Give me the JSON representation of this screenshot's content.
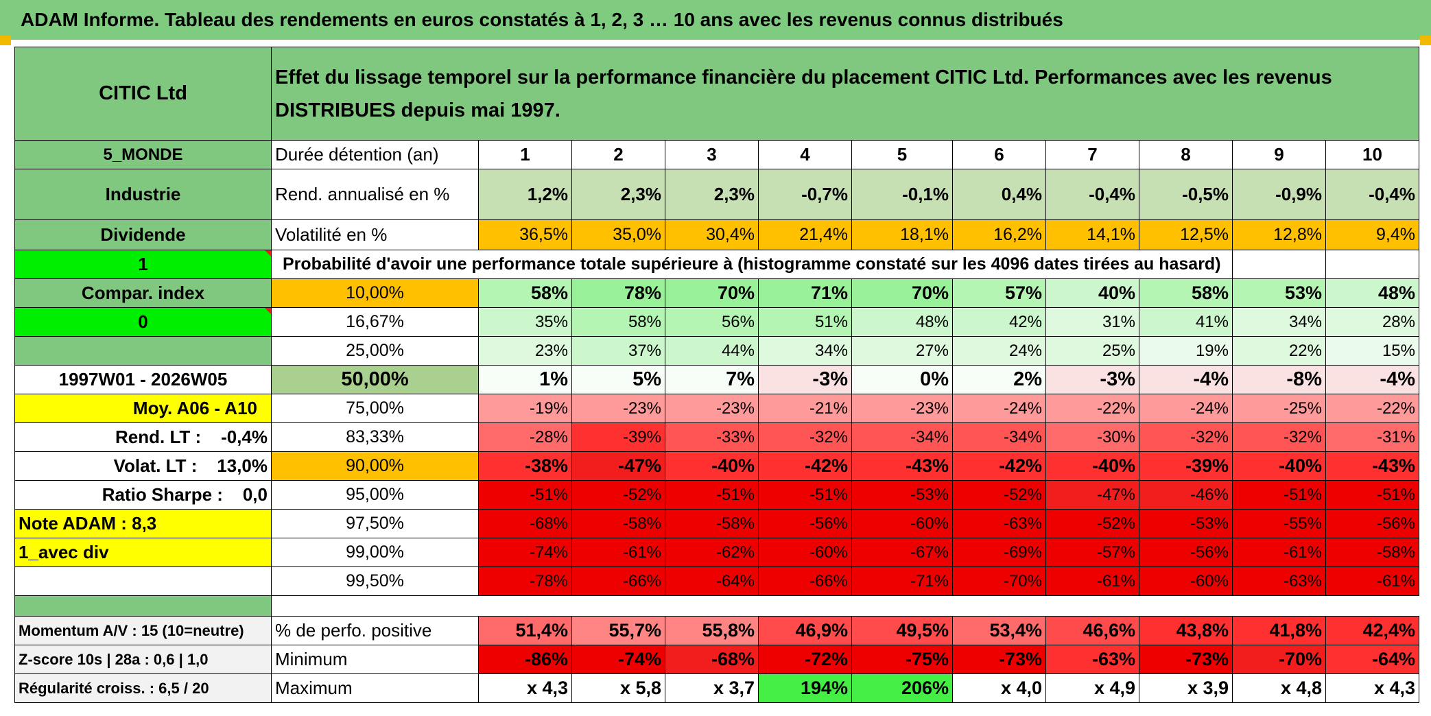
{
  "header": {
    "title": "ADAM Informe. Tableau des rendements en euros constatés à 1, 2, 3 … 10 ans avec les revenus connus distribués"
  },
  "top": {
    "name": "CITIC Ltd",
    "description": "Effet du lissage temporel sur la performance financière du placement CITIC Ltd. Performances avec les revenus DISTRIBUES depuis mai 1997."
  },
  "side": {
    "zone": "5_MONDE",
    "sector": "Industrie",
    "type": "Dividende",
    "one": "1",
    "compar": "Compar. index",
    "zero": "0",
    "period": "1997W01 - 2026W05",
    "moy": "Moy. A06 - A10",
    "rend": "Rend. LT :    -0,4%",
    "volat": "Volat. LT :    13,0%",
    "sharpe": "Ratio Sharpe :    0,0",
    "note": "Note ADAM : 8,3",
    "div": "1_avec div",
    "momentum": "Momentum A/V : 15 (10=neutre)",
    "zscore": "Z-score 10s | 28a : 0,6 | 1,0",
    "regularite": "Régularité croiss. : 6,5 / 20"
  },
  "labels": {
    "duree": "Durée détention (an)",
    "rend": "Rend. annualisé en %",
    "volat": "Volatilité en %",
    "proba": "Probabilité d'avoir une performance totale supérieure à (histogramme constaté sur les 4096 dates tirées au hasard)",
    "positive": "% de perfo. positive",
    "minimum": "Minimum",
    "maximum": "Maximum"
  },
  "years": [
    "1",
    "2",
    "3",
    "4",
    "5",
    "6",
    "7",
    "8",
    "9",
    "10"
  ],
  "rendement": [
    "1,2%",
    "2,3%",
    "2,3%",
    "-0,7%",
    "-0,1%",
    "0,4%",
    "-0,4%",
    "-0,5%",
    "-0,9%",
    "-0,4%"
  ],
  "volatilite": [
    "36,5%",
    "35,0%",
    "30,4%",
    "21,4%",
    "18,1%",
    "16,2%",
    "14,1%",
    "12,5%",
    "12,8%",
    "9,4%"
  ],
  "percentiles": [
    {
      "level": "10,00%",
      "values": [
        "58%",
        "78%",
        "70%",
        "71%",
        "70%",
        "57%",
        "40%",
        "58%",
        "53%",
        "48%"
      ]
    },
    {
      "level": "16,67%",
      "values": [
        "35%",
        "58%",
        "56%",
        "51%",
        "48%",
        "42%",
        "31%",
        "41%",
        "34%",
        "28%"
      ]
    },
    {
      "level": "25,00%",
      "values": [
        "23%",
        "37%",
        "44%",
        "34%",
        "27%",
        "24%",
        "25%",
        "19%",
        "22%",
        "15%"
      ]
    },
    {
      "level": "50,00%",
      "values": [
        "1%",
        "5%",
        "7%",
        "-3%",
        "0%",
        "2%",
        "-3%",
        "-4%",
        "-8%",
        "-4%"
      ]
    },
    {
      "level": "75,00%",
      "values": [
        "-19%",
        "-23%",
        "-23%",
        "-21%",
        "-23%",
        "-24%",
        "-22%",
        "-24%",
        "-25%",
        "-22%"
      ]
    },
    {
      "level": "83,33%",
      "values": [
        "-28%",
        "-39%",
        "-33%",
        "-32%",
        "-34%",
        "-34%",
        "-30%",
        "-32%",
        "-32%",
        "-31%"
      ]
    },
    {
      "level": "90,00%",
      "values": [
        "-38%",
        "-47%",
        "-40%",
        "-42%",
        "-43%",
        "-42%",
        "-40%",
        "-39%",
        "-40%",
        "-43%"
      ]
    },
    {
      "level": "95,00%",
      "values": [
        "-51%",
        "-52%",
        "-51%",
        "-51%",
        "-53%",
        "-52%",
        "-47%",
        "-46%",
        "-51%",
        "-51%"
      ]
    },
    {
      "level": "97,50%",
      "values": [
        "-68%",
        "-58%",
        "-58%",
        "-56%",
        "-60%",
        "-63%",
        "-52%",
        "-53%",
        "-55%",
        "-56%"
      ]
    },
    {
      "level": "99,00%",
      "values": [
        "-74%",
        "-61%",
        "-62%",
        "-60%",
        "-67%",
        "-69%",
        "-57%",
        "-56%",
        "-61%",
        "-58%"
      ]
    },
    {
      "level": "99,50%",
      "values": [
        "-78%",
        "-66%",
        "-64%",
        "-66%",
        "-71%",
        "-70%",
        "-61%",
        "-60%",
        "-63%",
        "-61%"
      ]
    }
  ],
  "positive": [
    "51,4%",
    "55,7%",
    "55,8%",
    "46,9%",
    "49,5%",
    "53,4%",
    "46,6%",
    "43,8%",
    "41,8%",
    "42,4%"
  ],
  "minimum": [
    "-86%",
    "-74%",
    "-68%",
    "-72%",
    "-75%",
    "-73%",
    "-63%",
    "-73%",
    "-70%",
    "-64%"
  ],
  "maximum": [
    "x 4,3",
    "x 5,8",
    "x 3,7",
    "194%",
    "206%",
    "x 4,0",
    "x 4,9",
    "x 3,9",
    "x 4,8",
    "x 4,3"
  ],
  "colors": {
    "header_green": "#7fcb7f",
    "lime": "#00ee00",
    "yellow": "#ffff00",
    "orange": "#ffc000",
    "red_text": "#d01010"
  }
}
